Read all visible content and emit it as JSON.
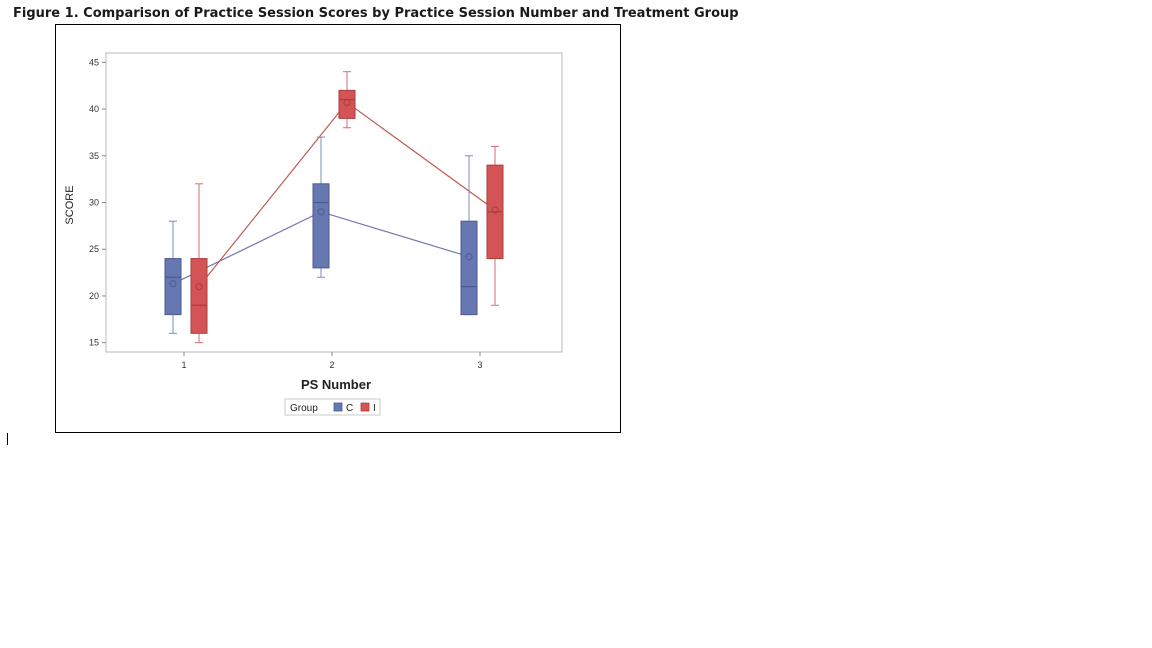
{
  "figure_title": "Figure 1. Comparison of Practice Session Scores by Practice Session Number and Treatment Group",
  "colors": {
    "C": "#6677b1",
    "I": "#d45355",
    "C_line": "#7078b0",
    "I_line": "#c05a52"
  },
  "chart_data": {
    "type": "box",
    "title": "",
    "xlabel": "PS Number",
    "ylabel": "SCORE",
    "categories": [
      "1",
      "2",
      "3"
    ],
    "ylim": [
      14,
      46
    ],
    "yticks": [
      15,
      20,
      25,
      30,
      35,
      40,
      45
    ],
    "grid": false,
    "legend": {
      "title": "Group",
      "entries": [
        "C",
        "I"
      ],
      "placement": "bottom-center"
    },
    "series": [
      {
        "name": "C",
        "boxes": [
          {
            "category": "1",
            "min": 16,
            "q1": 18,
            "median": 22,
            "q3": 24,
            "max": 28,
            "mean": 21.3
          },
          {
            "category": "2",
            "min": 22,
            "q1": 23,
            "median": 30,
            "q3": 32,
            "max": 37,
            "mean": 29.0
          },
          {
            "category": "3",
            "min": 18,
            "q1": 18,
            "median": 21,
            "q3": 28,
            "max": 35,
            "mean": 24.2
          }
        ]
      },
      {
        "name": "I",
        "boxes": [
          {
            "category": "1",
            "min": 15,
            "q1": 16,
            "median": 19,
            "q3": 24,
            "max": 32,
            "mean": 21.0
          },
          {
            "category": "2",
            "min": 38,
            "q1": 39,
            "median": 41,
            "q3": 42,
            "max": 44,
            "mean": 40.7
          },
          {
            "category": "3",
            "min": 19,
            "q1": 24,
            "median": 29,
            "q3": 34,
            "max": 36,
            "mean": 29.2
          }
        ]
      }
    ]
  }
}
